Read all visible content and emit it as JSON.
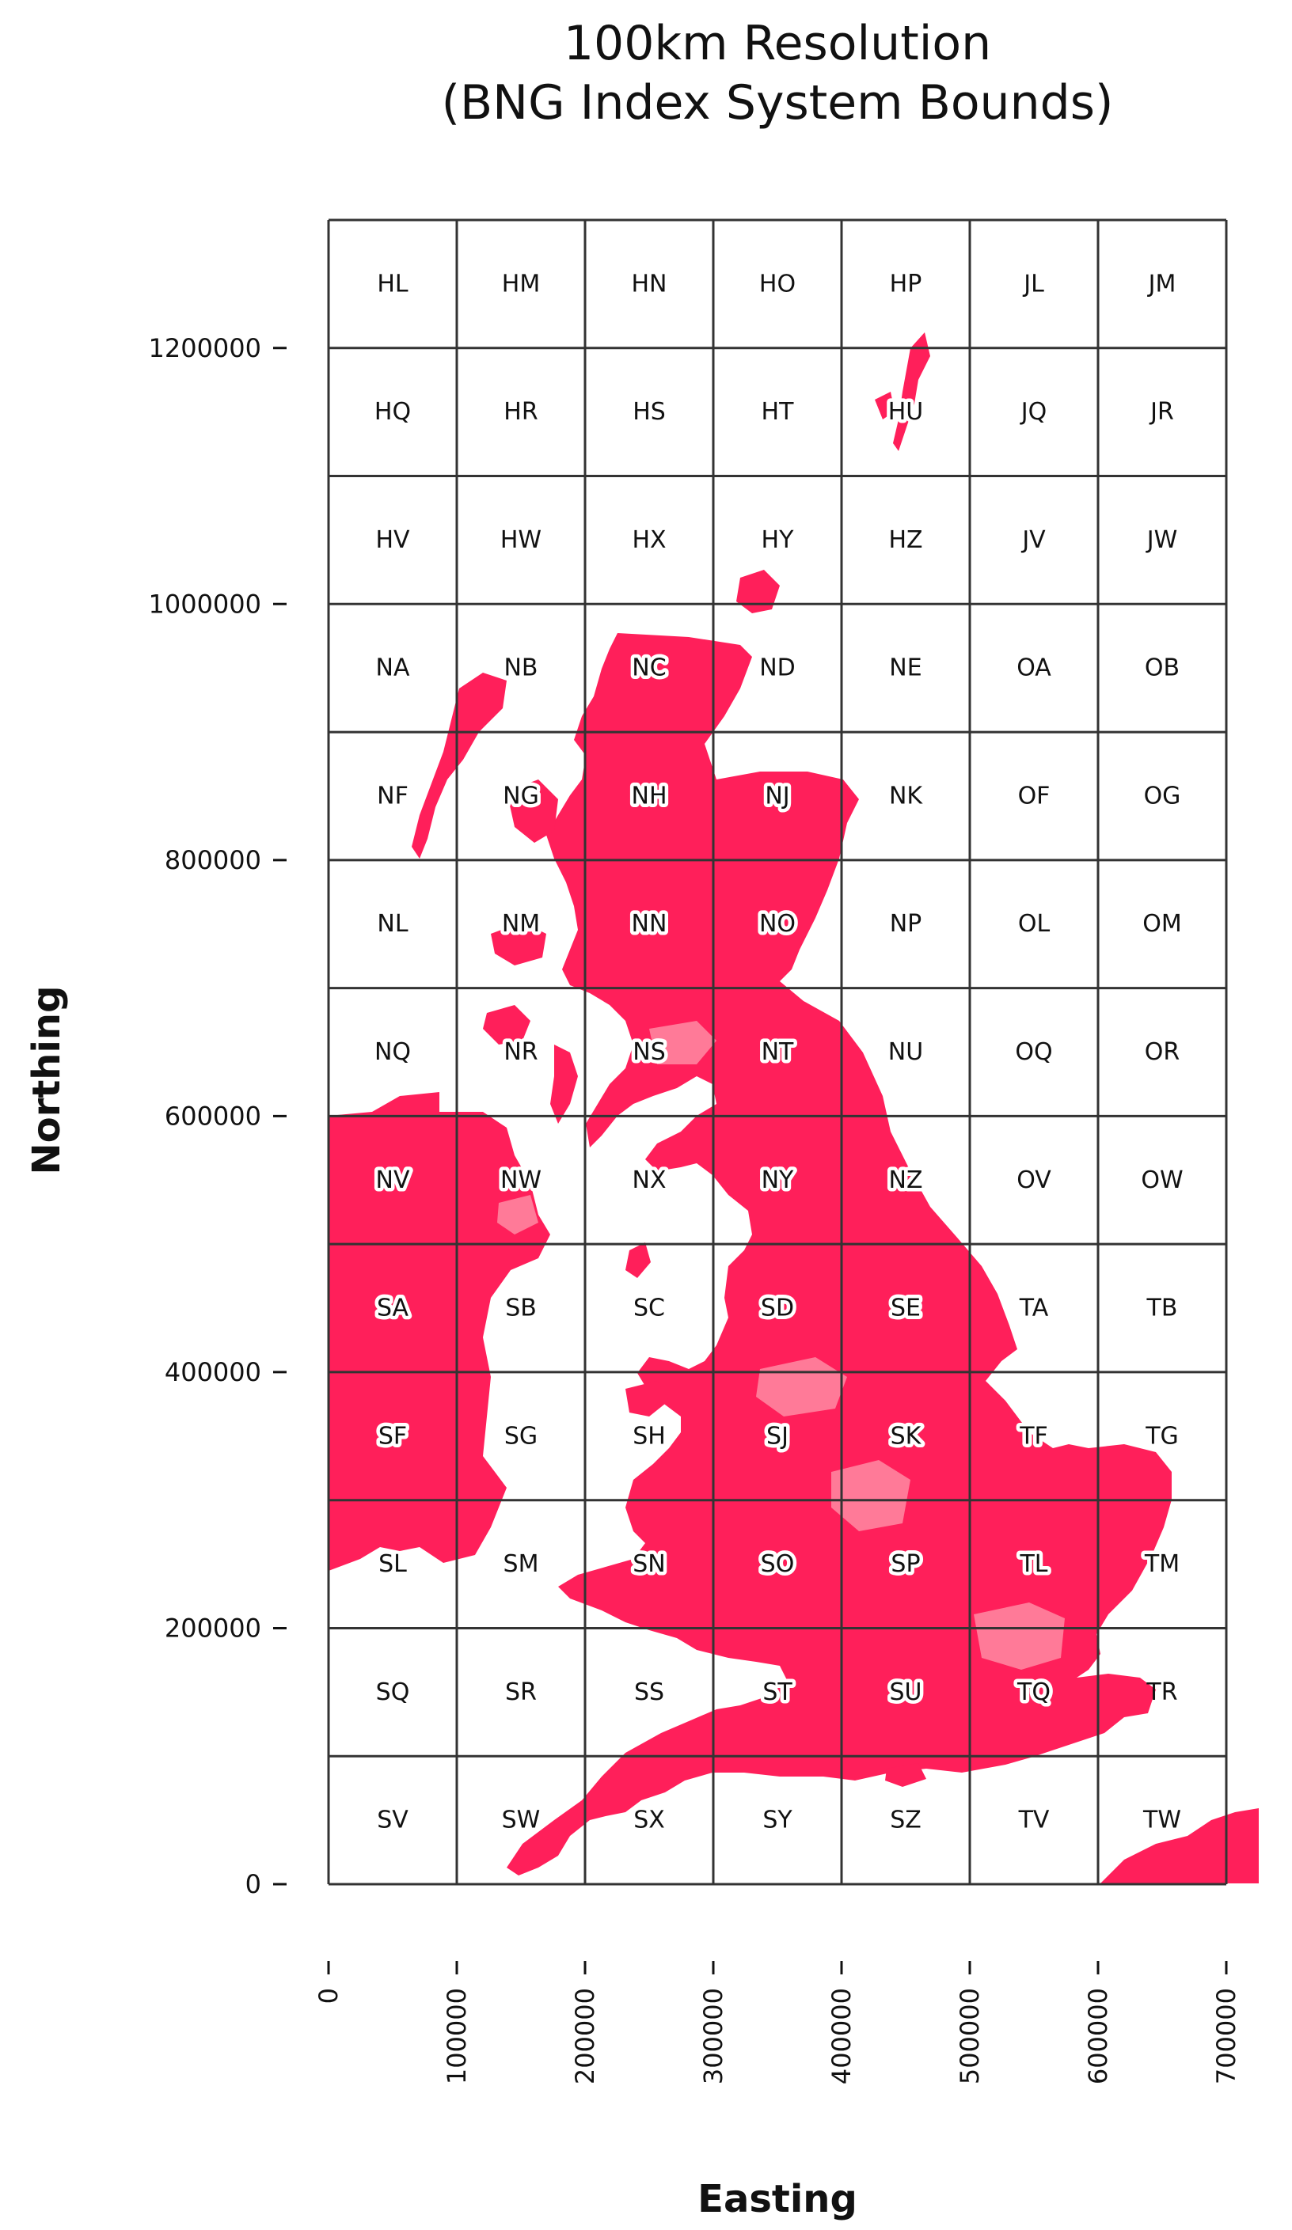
{
  "title_line1": "100km Resolution",
  "title_line2": "(BNG Index System Bounds)",
  "colors": {
    "land": "#ff1f5a",
    "urban": "#ff7a98",
    "grid": "#333333",
    "background": "#ffffff"
  },
  "chart_data": {
    "type": "map-grid",
    "title": "100km Resolution (BNG Index System Bounds)",
    "xlabel": "Easting",
    "ylabel": "Northing",
    "xlim": [
      0,
      700000
    ],
    "ylim": [
      0,
      1300000
    ],
    "cell_size": 100000,
    "x_ticks": [
      0,
      100000,
      200000,
      300000,
      400000,
      500000,
      600000,
      700000
    ],
    "x_tick_labels": [
      "0",
      "100000",
      "200000",
      "300000",
      "400000",
      "500000",
      "600000",
      "700000"
    ],
    "y_ticks": [
      0,
      200000,
      400000,
      600000,
      800000,
      1000000,
      1200000
    ],
    "y_tick_labels": [
      "0",
      "200000",
      "400000",
      "600000",
      "800000",
      "1000000",
      "1200000"
    ],
    "cells": [
      [
        "HL",
        "HM",
        "HN",
        "HO",
        "HP",
        "JL",
        "JM"
      ],
      [
        "HQ",
        "HR",
        "HS",
        "HT",
        "HU",
        "JQ",
        "JR"
      ],
      [
        "HV",
        "HW",
        "HX",
        "HY",
        "HZ",
        "JV",
        "JW"
      ],
      [
        "NA",
        "NB",
        "NC",
        "ND",
        "NE",
        "OA",
        "OB"
      ],
      [
        "NF",
        "NG",
        "NH",
        "NJ",
        "NK",
        "OF",
        "OG"
      ],
      [
        "NL",
        "NM",
        "NN",
        "NO",
        "NP",
        "OL",
        "OM"
      ],
      [
        "NQ",
        "NR",
        "NS",
        "NT",
        "NU",
        "OQ",
        "OR"
      ],
      [
        "NV",
        "NW",
        "NX",
        "NY",
        "NZ",
        "OV",
        "OW"
      ],
      [
        "SA",
        "SB",
        "SC",
        "SD",
        "SE",
        "TA",
        "TB"
      ],
      [
        "SF",
        "SG",
        "SH",
        "SJ",
        "SK",
        "TF",
        "TG"
      ],
      [
        "SL",
        "SM",
        "SN",
        "SO",
        "SP",
        "TL",
        "TM"
      ],
      [
        "SQ",
        "SR",
        "SS",
        "ST",
        "SU",
        "TQ",
        "TR"
      ],
      [
        "SV",
        "SW",
        "SX",
        "SY",
        "SZ",
        "TV",
        "TW"
      ]
    ],
    "land_cells": [
      "HU",
      "NB",
      "NC",
      "ND",
      "NG",
      "NH",
      "NJ",
      "NM",
      "NN",
      "NO",
      "NR",
      "NS",
      "NT",
      "NV",
      "NW",
      "NX",
      "NY",
      "NZ",
      "SA",
      "SD",
      "SE",
      "SF",
      "SH",
      "SJ",
      "SK",
      "TF",
      "SN",
      "SO",
      "SP",
      "TL",
      "TM",
      "ST",
      "SU",
      "TQ",
      "SW",
      "SX"
    ]
  }
}
